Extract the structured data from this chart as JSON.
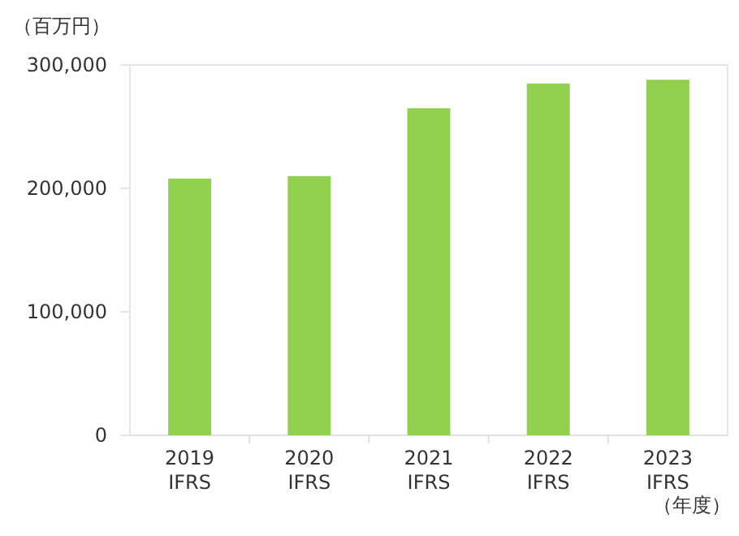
{
  "chart_data": {
    "type": "bar",
    "ylabel": "（百万円）",
    "xlabel": "（年度）",
    "categories": [
      "2019\nIFRS",
      "2020\nIFRS",
      "2021\nIFRS",
      "2022\nIFRS",
      "2023\nIFRS"
    ],
    "values": [
      208000,
      210000,
      265000,
      285000,
      288000
    ],
    "color": "#92d050",
    "ylim": [
      0,
      300000
    ],
    "yticks": [
      {
        "value": 0,
        "label": "0"
      },
      {
        "value": 100000,
        "label": "100,000"
      },
      {
        "value": 200000,
        "label": "200,000"
      },
      {
        "value": 300000,
        "label": "300,000"
      }
    ],
    "grid": false
  }
}
